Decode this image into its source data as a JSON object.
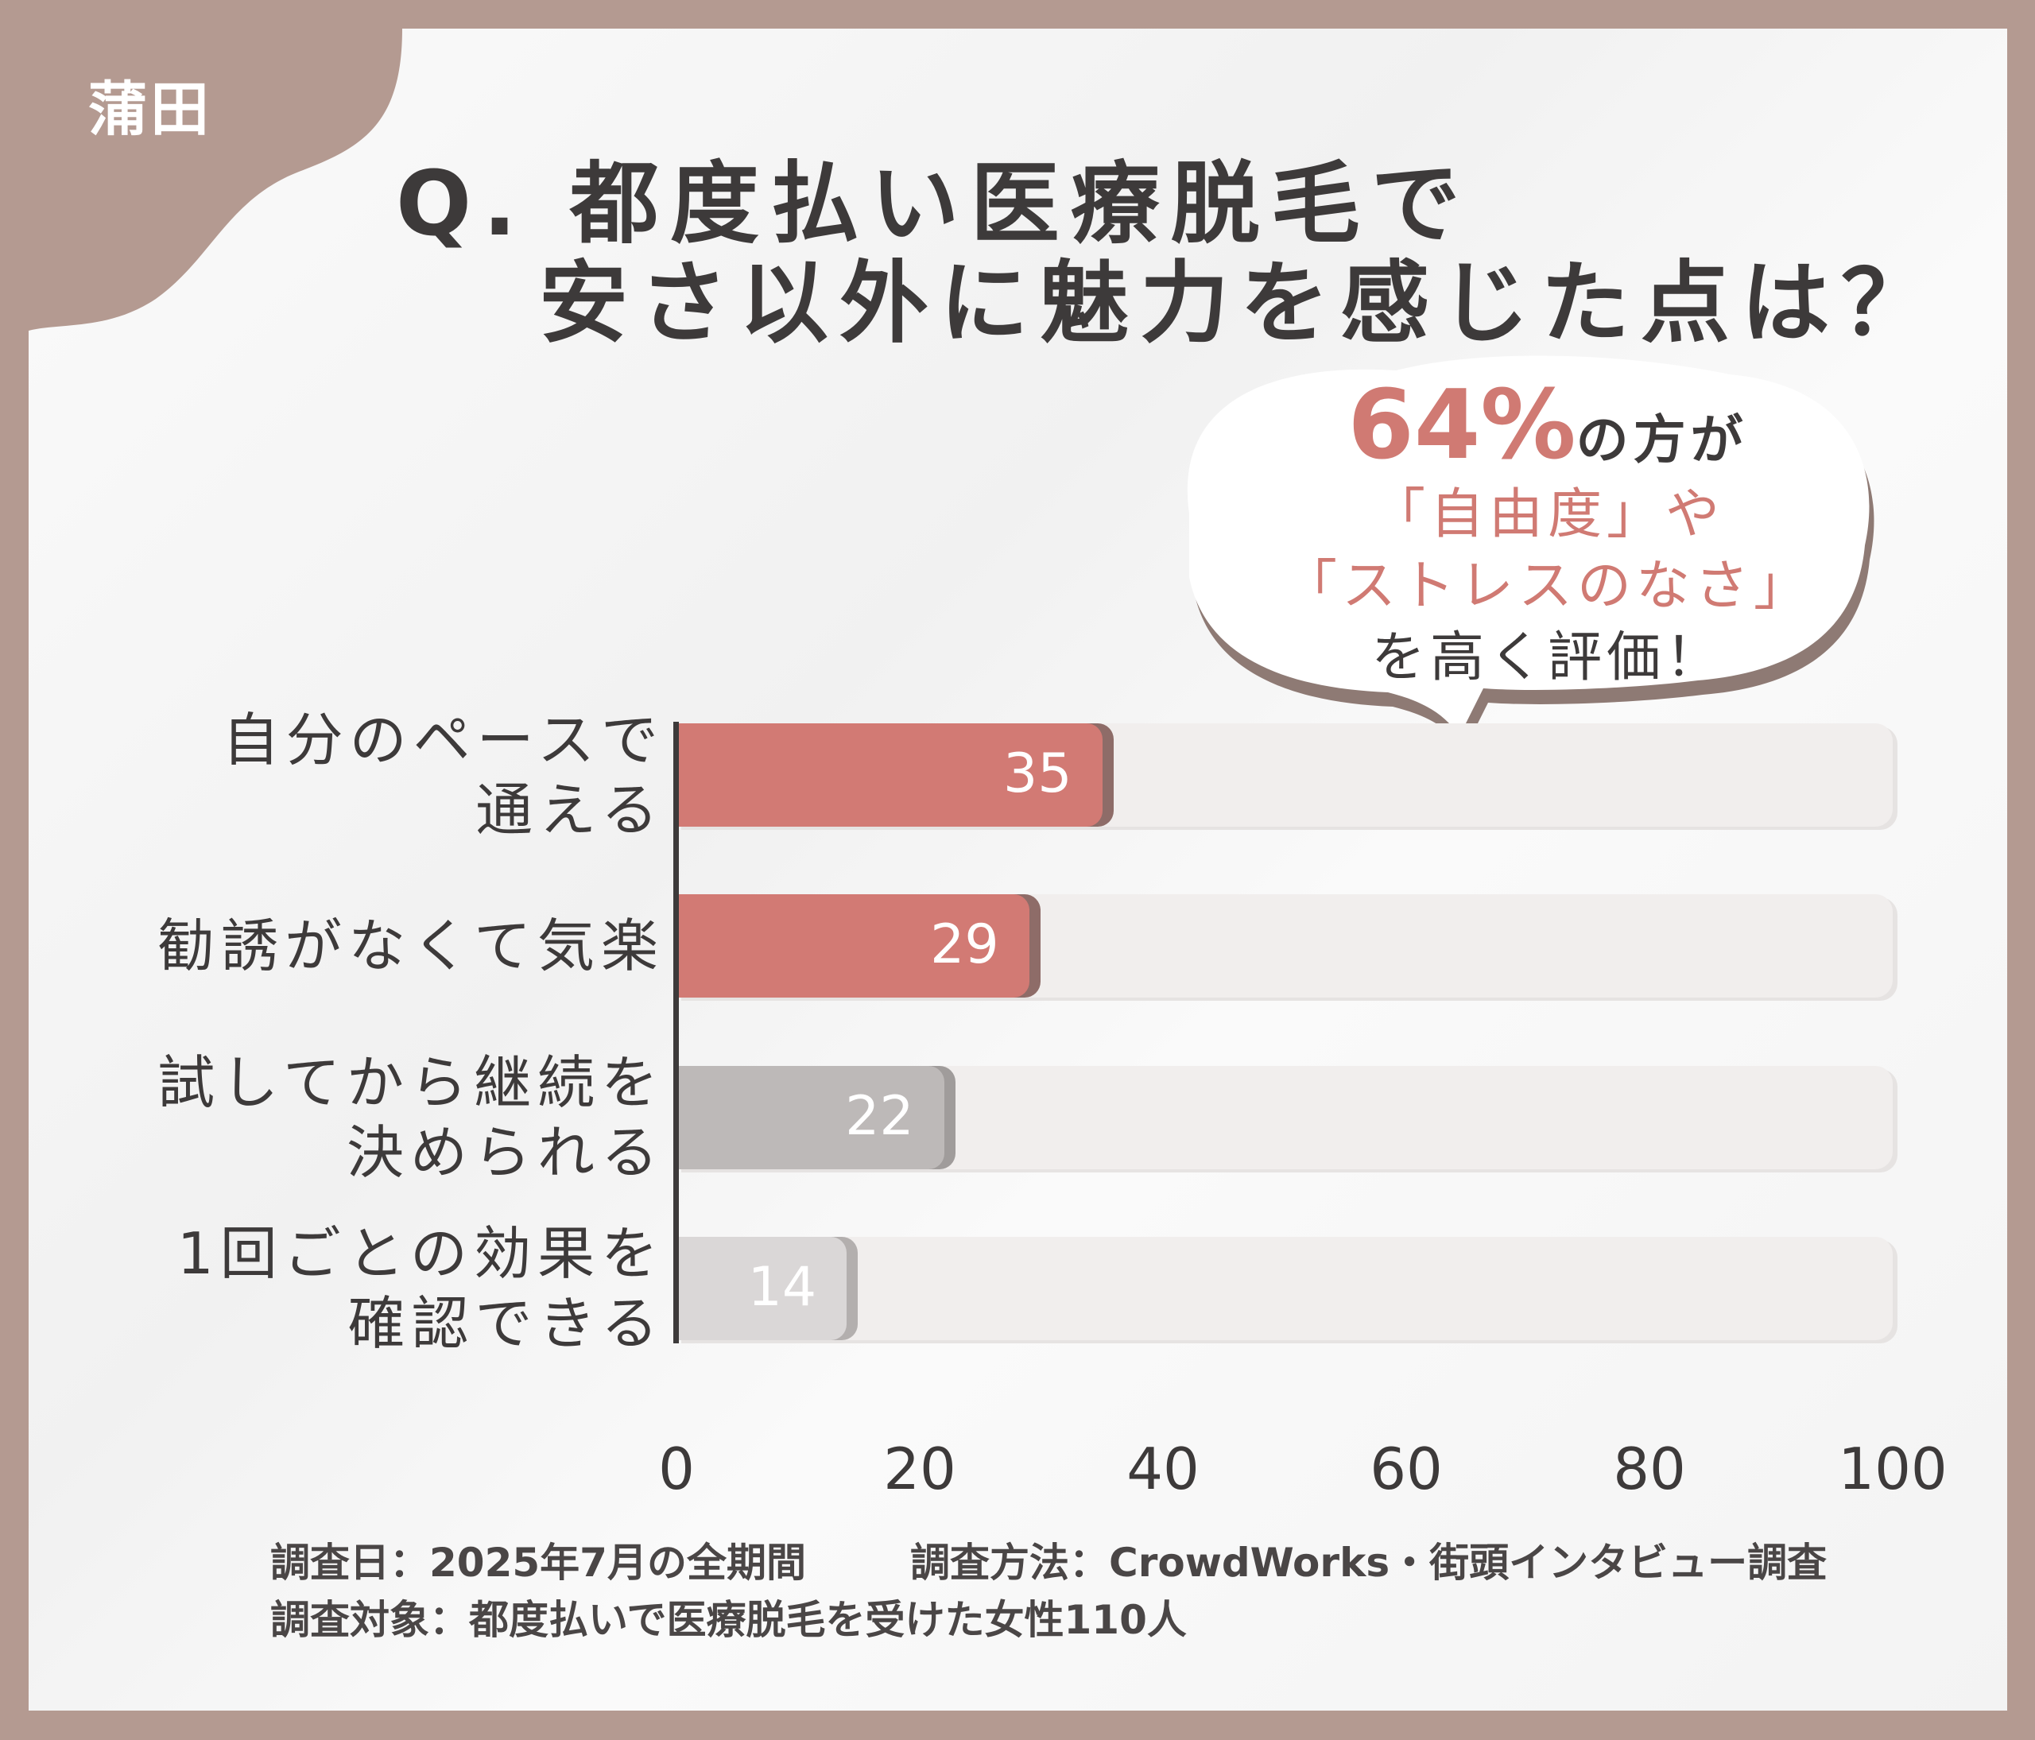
{
  "brand": "蒲田",
  "title": {
    "line1": "Q. 都度払い医療脱毛で",
    "line2": "安さ以外に魅力を感じた点は？"
  },
  "callout": {
    "pct": "64%",
    "l1_rest": "の方が",
    "l2": "「自由度」や",
    "l3": "「ストレスのなさ」",
    "l4": "を高く評価！"
  },
  "colors": {
    "accent": "#d27a74",
    "accent_shadow": "#8e6c68",
    "grey": "#bdb9b8",
    "light_grey": "#dad7d7",
    "frame": "#b49a91"
  },
  "chart_data": {
    "type": "bar",
    "orientation": "horizontal",
    "categories": [
      "自分のペースで\n通える",
      "勧誘がなくて気楽",
      "試してから継続を\n決められる",
      "1回ごとの効果を\n確認できる"
    ],
    "values": [
      35,
      29,
      22,
      14
    ],
    "xlim": [
      0,
      100
    ],
    "xticks": [
      "0",
      "20",
      "40",
      "60",
      "80",
      "100"
    ],
    "xlabel": "",
    "ylabel": ""
  },
  "footer": {
    "date": "調査日：2025年7月の全期間",
    "method": "調査方法：CrowdWorks・街頭インタビュー調査",
    "target": "調査対象：都度払いで医療脱毛を受けた女性110人"
  }
}
